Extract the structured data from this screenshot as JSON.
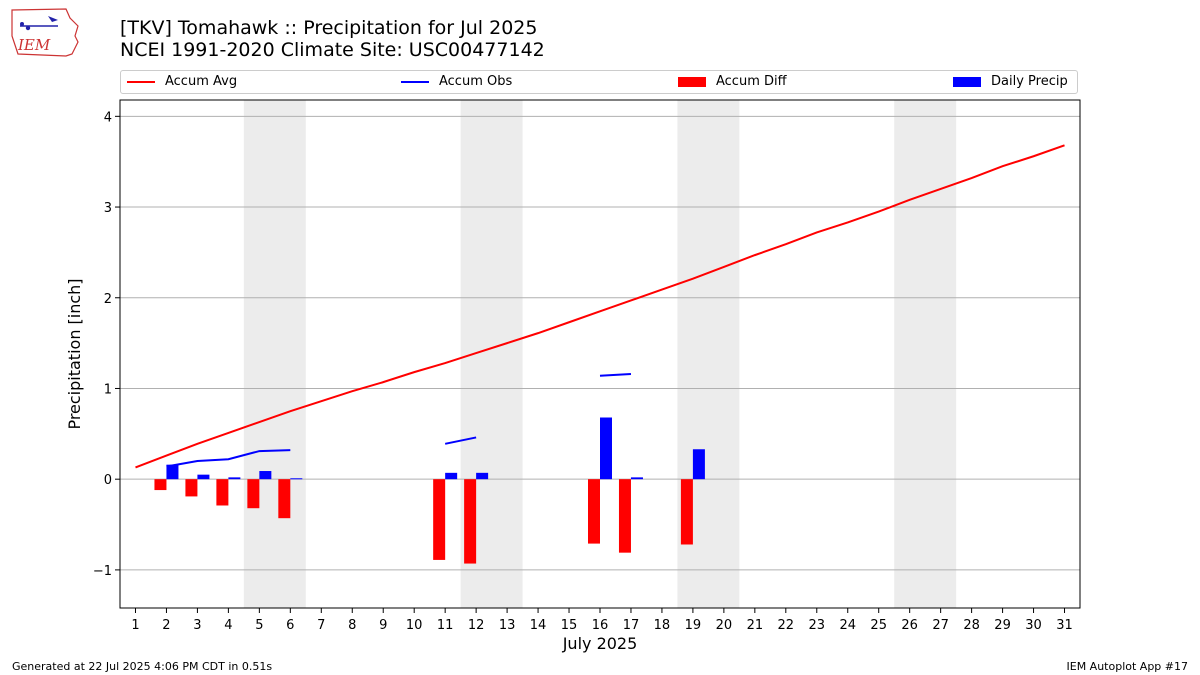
{
  "title": {
    "line1": "[TKV] Tomahawk :: Precipitation for Jul 2025",
    "line2": "NCEI 1991-2020 Climate Site: USC00477142"
  },
  "logo": {
    "text": "IEM"
  },
  "footer": {
    "left": "Generated at 22 Jul 2025 4:06 PM CDT in 0.51s",
    "right": "IEM Autoplot App #17"
  },
  "legend": [
    {
      "label": "Accum Avg",
      "kind": "line",
      "color": "#ff0000"
    },
    {
      "label": "Accum Obs",
      "kind": "line",
      "color": "#0000ff"
    },
    {
      "label": "Accum Diff",
      "kind": "box",
      "color": "#ff0000"
    },
    {
      "label": "Daily Precip",
      "kind": "box",
      "color": "#0000ff"
    }
  ],
  "chart_data": {
    "type": "bar",
    "xlabel": "July 2025",
    "ylabel": "Precipitation [inch]",
    "xlim": [
      0.5,
      31.5
    ],
    "ylim": [
      -1.42,
      4.18
    ],
    "yticks": [
      -1,
      0,
      1,
      2,
      3,
      4
    ],
    "ytick_labels": [
      "−1",
      "0",
      "1",
      "2",
      "3",
      "4"
    ],
    "days": [
      1,
      2,
      3,
      4,
      5,
      6,
      7,
      8,
      9,
      10,
      11,
      12,
      13,
      14,
      15,
      16,
      17,
      18,
      19,
      20,
      21,
      22,
      23,
      24,
      25,
      26,
      27,
      28,
      29,
      30,
      31
    ],
    "weekend_spans": [
      [
        4.5,
        6.5
      ],
      [
        11.5,
        13.5
      ],
      [
        18.5,
        20.5
      ],
      [
        25.5,
        27.5
      ]
    ],
    "accum_avg": {
      "name": "Accum Avg",
      "color": "#ff0000",
      "x": [
        1,
        2,
        3,
        4,
        5,
        6,
        7,
        8,
        9,
        10,
        11,
        12,
        13,
        14,
        15,
        16,
        17,
        18,
        19,
        20,
        21,
        22,
        23,
        24,
        25,
        26,
        27,
        28,
        29,
        30,
        31
      ],
      "y": [
        0.13,
        0.26,
        0.39,
        0.51,
        0.63,
        0.75,
        0.86,
        0.97,
        1.07,
        1.18,
        1.28,
        1.39,
        1.5,
        1.61,
        1.73,
        1.85,
        1.97,
        2.09,
        2.21,
        2.34,
        2.47,
        2.59,
        2.72,
        2.83,
        2.95,
        3.08,
        3.2,
        3.32,
        3.45,
        3.56,
        3.68
      ]
    },
    "accum_obs": {
      "name": "Accum Obs",
      "color": "#0000ff",
      "segments": [
        {
          "x": [
            2,
            3,
            4,
            5,
            6
          ],
          "y": [
            0.14,
            0.2,
            0.22,
            0.31,
            0.32
          ]
        },
        {
          "x": [
            11,
            12
          ],
          "y": [
            0.39,
            0.46
          ]
        },
        {
          "x": [
            16,
            17
          ],
          "y": [
            1.14,
            1.16
          ]
        }
      ]
    },
    "accum_diff": {
      "name": "Accum Diff",
      "color": "#ff0000",
      "days": [
        2,
        3,
        4,
        5,
        6,
        11,
        12,
        16,
        17,
        19
      ],
      "values": [
        -0.12,
        -0.19,
        -0.29,
        -0.32,
        -0.43,
        -0.89,
        -0.93,
        -0.71,
        -0.81,
        -0.72
      ]
    },
    "daily_precip": {
      "name": "Daily Precip",
      "color": "#0000ff",
      "days": [
        2,
        3,
        4,
        5,
        6,
        11,
        12,
        16,
        17,
        19
      ],
      "values": [
        0.16,
        0.05,
        0.02,
        0.09,
        0.01,
        0.07,
        0.07,
        0.68,
        0.02,
        0.33
      ]
    }
  }
}
